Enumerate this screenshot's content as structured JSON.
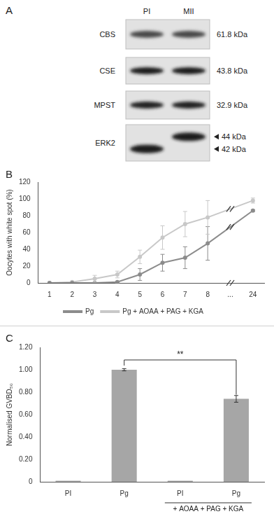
{
  "blot": {
    "panel": "A",
    "lanes": [
      "PI",
      "MII"
    ],
    "rows": [
      {
        "protein": "CBS",
        "mw": [
          "61.8 kDa"
        ]
      },
      {
        "protein": "CSE",
        "mw": [
          "43.8 kDa"
        ]
      },
      {
        "protein": "MPST",
        "mw": [
          "32.9 kDa"
        ]
      },
      {
        "protein": "ERK2",
        "mw": [
          "44 kDa",
          "42 kDa"
        ],
        "bands": [
          "42 kDa",
          "44 kDa"
        ]
      }
    ]
  },
  "chart_data": [
    {
      "panel": "B",
      "type": "line",
      "y_label": "Oocytes with white spot (%)",
      "categories": [
        "1",
        "2",
        "3",
        "4",
        "5",
        "6",
        "7",
        "8",
        "...",
        "24"
      ],
      "series": [
        {
          "name": "Pg",
          "color": "#8c8c8c",
          "marker": "circle",
          "values": [
            0,
            0,
            0,
            1,
            10,
            24,
            30,
            47,
            null,
            86
          ],
          "errors": [
            0,
            0,
            0,
            1,
            7,
            10,
            13,
            20,
            null,
            1
          ]
        },
        {
          "name": "Pg + AOAA + PAG + KGA",
          "color": "#c8c8c8",
          "marker": "circle",
          "values": [
            0,
            1,
            5,
            10,
            31,
            54,
            70,
            78,
            null,
            98
          ],
          "errors": [
            0,
            0,
            4,
            4,
            8,
            14,
            15,
            20,
            null,
            3
          ]
        }
      ],
      "ylim": [
        0,
        120
      ],
      "yticks": [
        0,
        20,
        40,
        60,
        80,
        100,
        120
      ],
      "grid": false,
      "legend": "bottom"
    },
    {
      "panel": "C",
      "type": "bar",
      "y_label": "Normalised GVBD₅₀",
      "categories": [
        "PI",
        "Pg",
        "PI",
        "Pg"
      ],
      "values": [
        0.01,
        1.0,
        0.01,
        0.74
      ],
      "errors": [
        0.0,
        0.01,
        0.0,
        0.03
      ],
      "color": "#a6a6a6",
      "ylim": [
        0,
        1.2
      ],
      "yticks": [
        0,
        {
          "value": 0.2,
          "label": "0.20"
        },
        {
          "value": 0.4,
          "label": "0.40"
        },
        {
          "value": 0.6,
          "label": "0.60"
        },
        {
          "value": 0.8,
          "label": "0.80"
        },
        {
          "value": 1.0,
          "label": "1.00"
        },
        {
          "value": 1.2,
          "label": "1.20"
        }
      ],
      "grid": false,
      "annotations": [
        {
          "text": "**",
          "between": [
            1,
            3
          ]
        },
        {
          "text": "+ AOAA + PAG + KGA",
          "under": [
            2,
            3
          ]
        }
      ]
    }
  ]
}
